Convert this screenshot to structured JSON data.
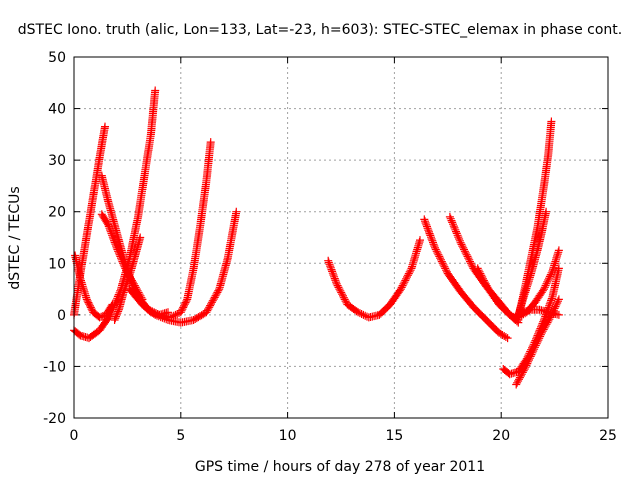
{
  "chart_data": {
    "type": "scatter",
    "title": "dSTEC Iono. truth (alic, Lon=133, Lat=-23, h=603): STEC-STEC_elemax in phase cont.",
    "xlabel": "GPS time / hours of day 278 of year 2011",
    "ylabel": "dSTEC  / TECUs",
    "xlim": [
      0,
      25
    ],
    "ylim": [
      -20,
      50
    ],
    "xticks": [
      0,
      5,
      10,
      15,
      20,
      25
    ],
    "yticks": [
      -20,
      -10,
      0,
      10,
      20,
      30,
      40,
      50
    ],
    "grid": true,
    "legend": "none",
    "marker": "+",
    "color": "#ff0000",
    "series": [
      {
        "x": [
          0.0,
          0.3,
          0.7,
          1.2,
          1.7,
          2.2,
          2.6,
          3.0,
          3.3,
          3.6,
          3.8
        ],
        "y": [
          -3.0,
          -4.0,
          -4.5,
          -3.0,
          0.0,
          5.0,
          11.0,
          19.0,
          27.0,
          35.0,
          43.5
        ]
      },
      {
        "x": [
          0.0,
          0.15,
          0.3,
          0.5,
          0.7,
          0.9,
          1.1,
          1.3,
          1.45
        ],
        "y": [
          0.0,
          4.0,
          8.0,
          13.0,
          18.0,
          23.0,
          28.0,
          33.0,
          36.5
        ]
      },
      {
        "x": [
          0.05,
          0.3,
          0.6,
          0.9,
          1.2,
          1.5,
          1.8
        ],
        "y": [
          11.5,
          7.0,
          3.0,
          0.5,
          -0.5,
          0.0,
          2.0
        ]
      },
      {
        "x": [
          1.3,
          1.6,
          2.0,
          2.4,
          2.8,
          3.2,
          3.6,
          4.0,
          4.4
        ],
        "y": [
          27.0,
          22.0,
          16.0,
          10.0,
          5.0,
          2.0,
          0.5,
          0.0,
          0.5
        ]
      },
      {
        "x": [
          1.3,
          1.6,
          2.0,
          2.4,
          2.8,
          3.2
        ],
        "y": [
          19.5,
          17.5,
          13.0,
          9.0,
          6.0,
          3.0
        ]
      },
      {
        "x": [
          1.9,
          2.1,
          2.3,
          2.5,
          2.7,
          2.9,
          3.1
        ],
        "y": [
          -1.0,
          1.0,
          4.0,
          6.5,
          9.0,
          12.0,
          15.0
        ]
      },
      {
        "x": [
          3.1,
          3.5,
          4.0,
          4.5,
          5.0,
          5.3,
          5.6,
          5.9,
          6.2,
          6.4
        ],
        "y": [
          3.0,
          1.0,
          0.0,
          -0.5,
          0.5,
          3.0,
          9.0,
          17.0,
          26.0,
          33.5
        ]
      },
      {
        "x": [
          2.6,
          3.2,
          3.8,
          4.4,
          5.0,
          5.6,
          6.2,
          6.8,
          7.2,
          7.6
        ],
        "y": [
          5.0,
          2.0,
          0.0,
          -1.0,
          -1.5,
          -1.0,
          0.5,
          5.0,
          11.0,
          20.0
        ]
      },
      {
        "x": [
          11.9,
          12.3,
          12.8,
          13.3,
          13.8,
          14.3,
          14.8,
          15.3,
          15.8,
          16.2
        ],
        "y": [
          10.5,
          6.0,
          2.0,
          0.5,
          -0.5,
          0.0,
          2.0,
          5.0,
          9.0,
          14.5
        ]
      },
      {
        "x": [
          16.4,
          16.9,
          17.5,
          18.1,
          18.7,
          19.3,
          19.9,
          20.3
        ],
        "y": [
          18.5,
          13.0,
          8.0,
          4.5,
          1.5,
          -1.0,
          -3.5,
          -4.5
        ]
      },
      {
        "x": [
          17.6,
          18.1,
          18.7,
          19.3,
          19.9,
          20.4,
          20.8
        ],
        "y": [
          19.0,
          14.0,
          9.0,
          5.5,
          2.5,
          0.0,
          -1.5
        ]
      },
      {
        "x": [
          18.9,
          19.4,
          19.9,
          20.4,
          20.8
        ],
        "y": [
          9.0,
          5.0,
          2.0,
          0.0,
          -1.0
        ]
      },
      {
        "x": [
          20.8,
          21.1,
          21.4,
          21.7,
          22.0,
          22.2,
          22.35
        ],
        "y": [
          -0.5,
          5.0,
          11.0,
          17.0,
          25.0,
          31.0,
          37.5
        ]
      },
      {
        "x": [
          20.8,
          21.1,
          21.4,
          21.7,
          21.9,
          22.1
        ],
        "y": [
          0.0,
          4.0,
          8.0,
          12.5,
          16.0,
          20.0
        ]
      },
      {
        "x": [
          20.8,
          21.2,
          21.6,
          22.0,
          22.4,
          22.7
        ],
        "y": [
          -0.5,
          0.5,
          2.5,
          5.0,
          8.5,
          12.5
        ]
      },
      {
        "x": [
          20.1,
          20.4,
          20.8,
          21.2,
          21.6,
          22.0,
          22.4,
          22.7
        ],
        "y": [
          -10.5,
          -11.5,
          -11.0,
          -8.5,
          -5.0,
          -1.0,
          3.5,
          9.0
        ]
      },
      {
        "x": [
          20.7,
          21.1,
          21.5,
          21.9,
          22.3,
          22.7
        ],
        "y": [
          -13.5,
          -10.5,
          -7.0,
          -3.5,
          -0.5,
          3.0
        ]
      },
      {
        "x": [
          20.6,
          21.0,
          21.4,
          21.8,
          22.2,
          22.7
        ],
        "y": [
          -0.5,
          0.5,
          1.0,
          1.0,
          0.5,
          0.0
        ]
      }
    ]
  }
}
